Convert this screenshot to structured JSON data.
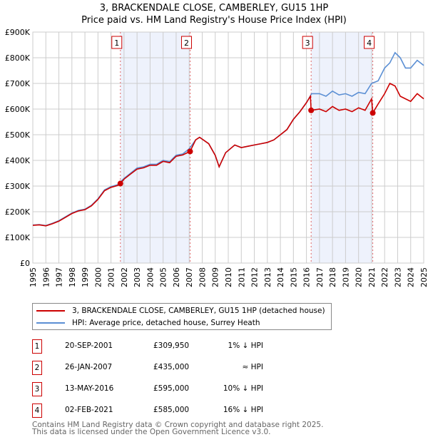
{
  "chart_data": {
    "type": "line",
    "title": "3, BRACKENDALE CLOSE, CAMBERLEY, GU15 1HP",
    "subtitle": "Price paid vs. HM Land Registry's House Price Index (HPI)",
    "xlim": [
      1995,
      2025
    ],
    "ylim": [
      0,
      900000
    ],
    "x_ticks": [
      "1995",
      "1996",
      "1997",
      "1998",
      "1999",
      "2000",
      "2001",
      "2002",
      "2003",
      "2004",
      "2005",
      "2006",
      "2007",
      "2008",
      "2009",
      "2010",
      "2011",
      "2012",
      "2013",
      "2014",
      "2015",
      "2016",
      "2017",
      "2018",
      "2019",
      "2020",
      "2021",
      "2022",
      "2023",
      "2024",
      "2025"
    ],
    "y_ticks": [
      {
        "v": 0,
        "label": "£0"
      },
      {
        "v": 100000,
        "label": "£100K"
      },
      {
        "v": 200000,
        "label": "£200K"
      },
      {
        "v": 300000,
        "label": "£300K"
      },
      {
        "v": 400000,
        "label": "£400K"
      },
      {
        "v": 500000,
        "label": "£500K"
      },
      {
        "v": 600000,
        "label": "£600K"
      },
      {
        "v": 700000,
        "label": "£700K"
      },
      {
        "v": 800000,
        "label": "£800K"
      },
      {
        "v": 900000,
        "label": "£900K"
      }
    ],
    "grid": true,
    "shaded_ranges": [
      [
        2001.72,
        2007.07
      ],
      [
        2016.36,
        2021.09
      ]
    ],
    "series": [
      {
        "name": "HPI: Average price, detached house, Surrey Heath",
        "color": "#5b8fd4",
        "x": [
          1995,
          1995.5,
          1996,
          1996.5,
          1997,
          1997.5,
          1998,
          1998.5,
          1999,
          1999.5,
          2000,
          2000.5,
          2001,
          2001.5,
          2002,
          2002.5,
          2003,
          2003.5,
          2004,
          2004.5,
          2005,
          2005.5,
          2006,
          2006.5,
          2007,
          2007.5,
          2007.8,
          2008.5,
          2009,
          2009.3,
          2009.8,
          2010.5,
          2011,
          2011.5,
          2012,
          2012.5,
          2013,
          2013.5,
          2014,
          2014.5,
          2015,
          2015.5,
          2016,
          2016.4,
          2017,
          2017.5,
          2018,
          2018.5,
          2019,
          2019.5,
          2020,
          2020.5,
          2021,
          2021.5,
          2022,
          2022.4,
          2022.8,
          2023.2,
          2023.6,
          2024,
          2024.5,
          2025
        ],
        "y": [
          148000,
          150000,
          146000,
          155000,
          165000,
          180000,
          195000,
          205000,
          210000,
          225000,
          250000,
          285000,
          298000,
          305000,
          330000,
          350000,
          370000,
          375000,
          385000,
          385000,
          400000,
          395000,
          420000,
          425000,
          445000,
          480000,
          490000,
          465000,
          420000,
          375000,
          430000,
          460000,
          450000,
          455000,
          460000,
          465000,
          470000,
          480000,
          500000,
          520000,
          560000,
          590000,
          625000,
          660000,
          660000,
          650000,
          670000,
          655000,
          660000,
          650000,
          665000,
          660000,
          700000,
          710000,
          760000,
          780000,
          820000,
          800000,
          760000,
          760000,
          790000,
          770000
        ]
      },
      {
        "name": "3, BRACKENDALE CLOSE, CAMBERLEY, GU15 1HP (detached house)",
        "color": "#cc0000",
        "x": [
          1995,
          1995.5,
          1996,
          1996.5,
          1997,
          1997.5,
          1998,
          1998.5,
          1999,
          1999.5,
          2000,
          2000.5,
          2001,
          2001.5,
          2001.72,
          2002,
          2002.5,
          2003,
          2003.5,
          2004,
          2004.5,
          2005,
          2005.5,
          2006,
          2006.5,
          2007.07,
          2007.5,
          2007.8,
          2008.5,
          2009,
          2009.3,
          2009.8,
          2010.5,
          2011,
          2011.5,
          2012,
          2012.5,
          2013,
          2013.5,
          2014,
          2014.5,
          2015,
          2015.5,
          2016,
          2016.3,
          2016.36,
          2017,
          2017.5,
          2018,
          2018.5,
          2019,
          2019.5,
          2020,
          2020.5,
          2021,
          2021.09,
          2021.5,
          2022,
          2022.4,
          2022.8,
          2023.2,
          2023.6,
          2024,
          2024.5,
          2025
        ],
        "y": [
          147000,
          149000,
          145000,
          153000,
          163000,
          178000,
          193000,
          203000,
          208000,
          223000,
          248000,
          282000,
          295000,
          302000,
          309950,
          327000,
          347000,
          366000,
          371000,
          381000,
          381000,
          396000,
          391000,
          416000,
          421000,
          435000,
          480000,
          490000,
          465000,
          420000,
          375000,
          430000,
          460000,
          450000,
          455000,
          460000,
          465000,
          470000,
          480000,
          500000,
          520000,
          560000,
          590000,
          625000,
          650000,
          595000,
          600000,
          590000,
          610000,
          595000,
          600000,
          590000,
          605000,
          595000,
          640000,
          585000,
          620000,
          660000,
          700000,
          690000,
          650000,
          640000,
          630000,
          660000,
          640000
        ]
      }
    ],
    "sales": [
      {
        "n": "1",
        "date": "20-SEP-2001",
        "x": 2001.72,
        "price": 309950,
        "price_label": "£309,950",
        "hpi": "1% ↓ HPI"
      },
      {
        "n": "2",
        "date": "26-JAN-2007",
        "x": 2007.07,
        "price": 435000,
        "price_label": "£435,000",
        "hpi": "≈ HPI"
      },
      {
        "n": "3",
        "date": "13-MAY-2016",
        "x": 2016.36,
        "price": 595000,
        "price_label": "£595,000",
        "hpi": "10% ↓ HPI"
      },
      {
        "n": "4",
        "date": "02-FEB-2021",
        "x": 2021.09,
        "price": 585000,
        "price_label": "£585,000",
        "hpi": "16% ↓ HPI"
      }
    ]
  },
  "legend": {
    "property": "3, BRACKENDALE CLOSE, CAMBERLEY, GU15 1HP (detached house)",
    "hpi": "HPI: Average price, detached house, Surrey Heath"
  },
  "footer": {
    "line1": "Contains HM Land Registry data © Crown copyright and database right 2025.",
    "line2": "This data is licensed under the Open Government Licence v3.0."
  }
}
